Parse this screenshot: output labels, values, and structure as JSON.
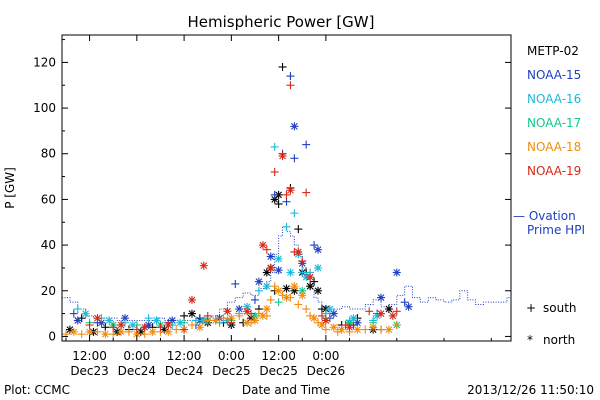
{
  "chart_data": {
    "type": "scatter",
    "title": "Hemispheric Power [GW]",
    "ylabel": "P [GW]",
    "xlabel": "Date and Time",
    "footer_left": "Plot: CCMC",
    "footer_right": "2013/12/26 11:50:10",
    "x_unit": "hours since 2013-12-23 00:00",
    "xlim": [
      5,
      119
    ],
    "ylim": [
      -2,
      132
    ],
    "y_ticks": [
      0,
      20,
      40,
      60,
      80,
      100,
      120
    ],
    "x_ticks": [
      {
        "x": 12,
        "time": "12:00",
        "date": "Dec23"
      },
      {
        "x": 24,
        "time": "0:00",
        "date": "Dec24"
      },
      {
        "x": 36,
        "time": "12:00",
        "date": "Dec24"
      },
      {
        "x": 48,
        "time": "0:00",
        "date": "Dec25"
      },
      {
        "x": 60,
        "time": "12:00",
        "date": "Dec25"
      },
      {
        "x": 72,
        "time": "0:00",
        "date": "Dec26"
      }
    ],
    "legend": {
      "satellites": [
        {
          "name": "METP-02",
          "color": "#000000"
        },
        {
          "name": "NOAA-15",
          "color": "#1f3fbf"
        },
        {
          "name": "NOAA-16",
          "color": "#20b8d8"
        },
        {
          "name": "NOAA-17",
          "color": "#10c890"
        },
        {
          "name": "NOAA-18",
          "color": "#f08c10"
        },
        {
          "name": "NOAA-19",
          "color": "#d82818"
        }
      ],
      "ovation_label_1": "— Ovation",
      "ovation_label_2": "Prime HPI",
      "ovation_color": "#1f3fbf",
      "south_symbol": "+",
      "south_label": "south",
      "north_symbol": "*",
      "north_label": "north"
    },
    "ovation_hpi": {
      "x": [
        5,
        7,
        9,
        11,
        13,
        15,
        17,
        19,
        21,
        23,
        25,
        27,
        29,
        31,
        33,
        35,
        37,
        39,
        41,
        43,
        45,
        47,
        49,
        51,
        53,
        55,
        57,
        58,
        59,
        60,
        61,
        62,
        63,
        64,
        65,
        66,
        67,
        68,
        69,
        70,
        71,
        72,
        74,
        76,
        78,
        80,
        82,
        84,
        86,
        88,
        90,
        92,
        94,
        96,
        98,
        100,
        102,
        104,
        106,
        108,
        110,
        112,
        114,
        116,
        118
      ],
      "y": [
        17,
        15,
        12,
        9,
        8,
        8,
        8,
        7,
        7,
        7,
        7,
        7,
        8,
        7,
        7,
        7,
        7,
        8,
        8,
        9,
        12,
        15,
        17,
        19,
        18,
        21,
        24,
        28,
        36,
        44,
        48,
        46,
        44,
        40,
        36,
        30,
        25,
        21,
        17,
        15,
        13,
        12,
        12,
        13,
        12,
        12,
        14,
        16,
        13,
        14,
        18,
        22,
        17,
        15,
        17,
        16,
        15,
        16,
        20,
        16,
        14,
        15,
        15,
        15,
        17
      ]
    },
    "series": [
      {
        "name": "METP-02",
        "color": "#000000",
        "hemisphere": "south",
        "points": [
          [
            10,
            8
          ],
          [
            16,
            4
          ],
          [
            22,
            3
          ],
          [
            28,
            4
          ],
          [
            36,
            9
          ],
          [
            40,
            8
          ],
          [
            46,
            6
          ],
          [
            51,
            6
          ],
          [
            55,
            12
          ],
          [
            59,
            20
          ],
          [
            60,
            58
          ],
          [
            61,
            118
          ],
          [
            63,
            65
          ],
          [
            65,
            47
          ],
          [
            67,
            28
          ],
          [
            69,
            24
          ],
          [
            71,
            12
          ],
          [
            76,
            5
          ],
          [
            80,
            8
          ],
          [
            86,
            3
          ]
        ]
      },
      {
        "name": "METP-02",
        "color": "#000000",
        "hemisphere": "north",
        "points": [
          [
            7,
            3
          ],
          [
            13,
            2
          ],
          [
            19,
            2
          ],
          [
            25,
            2
          ],
          [
            31,
            3
          ],
          [
            38,
            10
          ],
          [
            42,
            6
          ],
          [
            48,
            5
          ],
          [
            53,
            8
          ],
          [
            57,
            28
          ],
          [
            58,
            30
          ],
          [
            59,
            60
          ],
          [
            60,
            62
          ],
          [
            62,
            21
          ],
          [
            64,
            20
          ],
          [
            66,
            28
          ],
          [
            68,
            22
          ],
          [
            70,
            20
          ],
          [
            72,
            12
          ],
          [
            78,
            6
          ],
          [
            84,
            3
          ],
          [
            88,
            12
          ]
        ]
      },
      {
        "name": "NOAA-15",
        "color": "#1f3fbf",
        "hemisphere": "south",
        "points": [
          [
            8,
            10
          ],
          [
            14,
            6
          ],
          [
            20,
            5
          ],
          [
            26,
            4
          ],
          [
            32,
            6
          ],
          [
            39,
            5
          ],
          [
            44,
            7
          ],
          [
            49,
            23
          ],
          [
            54,
            16
          ],
          [
            59,
            62
          ],
          [
            61,
            80
          ],
          [
            62,
            59
          ],
          [
            63,
            114
          ],
          [
            64,
            78
          ],
          [
            67,
            84
          ],
          [
            69,
            40
          ],
          [
            73,
            8
          ],
          [
            79,
            5
          ],
          [
            85,
            10
          ],
          [
            92,
            15
          ]
        ]
      },
      {
        "name": "NOAA-15",
        "color": "#1f3fbf",
        "hemisphere": "north",
        "points": [
          [
            9,
            7
          ],
          [
            15,
            6
          ],
          [
            21,
            8
          ],
          [
            27,
            5
          ],
          [
            33,
            7
          ],
          [
            40,
            7
          ],
          [
            45,
            8
          ],
          [
            50,
            12
          ],
          [
            55,
            24
          ],
          [
            58,
            35
          ],
          [
            60,
            29
          ],
          [
            64,
            92
          ],
          [
            66,
            32
          ],
          [
            70,
            38
          ],
          [
            74,
            10
          ],
          [
            80,
            6
          ],
          [
            86,
            17
          ],
          [
            90,
            28
          ],
          [
            93,
            13
          ]
        ]
      },
      {
        "name": "NOAA-16",
        "color": "#20b8d8",
        "hemisphere": "south",
        "points": [
          [
            9,
            12
          ],
          [
            15,
            8
          ],
          [
            21,
            6
          ],
          [
            27,
            8
          ],
          [
            33,
            5
          ],
          [
            39,
            7
          ],
          [
            45,
            6
          ],
          [
            50,
            10
          ],
          [
            55,
            20
          ],
          [
            59,
            83
          ],
          [
            62,
            48
          ],
          [
            64,
            54
          ],
          [
            66,
            28
          ],
          [
            68,
            28
          ],
          [
            72,
            10
          ],
          [
            78,
            7
          ],
          [
            84,
            7
          ],
          [
            90,
            5
          ]
        ]
      },
      {
        "name": "NOAA-16",
        "color": "#20b8d8",
        "hemisphere": "north",
        "points": [
          [
            11,
            10
          ],
          [
            17,
            7
          ],
          [
            23,
            5
          ],
          [
            29,
            7
          ],
          [
            35,
            6
          ],
          [
            41,
            7
          ],
          [
            47,
            7
          ],
          [
            52,
            13
          ],
          [
            57,
            22
          ],
          [
            60,
            34
          ],
          [
            63,
            28
          ],
          [
            65,
            36
          ],
          [
            67,
            26
          ],
          [
            70,
            30
          ],
          [
            73,
            12
          ],
          [
            79,
            8
          ],
          [
            85,
            9
          ]
        ]
      },
      {
        "name": "NOAA-17",
        "color": "#10c890",
        "hemisphere": "south",
        "points": [
          [
            12,
            6
          ],
          [
            24,
            5
          ],
          [
            36,
            6
          ],
          [
            48,
            7
          ],
          [
            60,
            15
          ],
          [
            72,
            8
          ],
          [
            84,
            6
          ]
        ]
      },
      {
        "name": "NOAA-17",
        "color": "#10c890",
        "hemisphere": "north",
        "points": [
          [
            18,
            5
          ],
          [
            30,
            5
          ],
          [
            42,
            7
          ],
          [
            54,
            9
          ],
          [
            66,
            20
          ],
          [
            78,
            6
          ],
          [
            90,
            5
          ]
        ]
      },
      {
        "name": "NOAA-18",
        "color": "#f08c10",
        "hemisphere": "south",
        "points": [
          [
            6,
            1
          ],
          [
            10,
            1
          ],
          [
            14,
            2
          ],
          [
            18,
            1
          ],
          [
            22,
            2
          ],
          [
            26,
            1
          ],
          [
            30,
            2
          ],
          [
            34,
            3
          ],
          [
            38,
            5
          ],
          [
            42,
            7
          ],
          [
            46,
            8
          ],
          [
            50,
            9
          ],
          [
            53,
            6
          ],
          [
            55,
            10
          ],
          [
            57,
            9
          ],
          [
            58,
            16
          ],
          [
            59,
            22
          ],
          [
            61,
            18
          ],
          [
            63,
            17
          ],
          [
            65,
            14
          ],
          [
            67,
            12
          ],
          [
            68,
            9
          ],
          [
            70,
            6
          ],
          [
            72,
            3
          ],
          [
            75,
            2
          ],
          [
            78,
            2
          ],
          [
            82,
            3
          ],
          [
            86,
            3
          ],
          [
            90,
            5
          ]
        ]
      },
      {
        "name": "NOAA-18",
        "color": "#f08c10",
        "hemisphere": "north",
        "points": [
          [
            8,
            2
          ],
          [
            12,
            2
          ],
          [
            16,
            1
          ],
          [
            20,
            2
          ],
          [
            24,
            1
          ],
          [
            28,
            2
          ],
          [
            32,
            2
          ],
          [
            36,
            3
          ],
          [
            40,
            4
          ],
          [
            44,
            7
          ],
          [
            48,
            8
          ],
          [
            52,
            6
          ],
          [
            54,
            7
          ],
          [
            56,
            9
          ],
          [
            57,
            12
          ],
          [
            60,
            20
          ],
          [
            62,
            17
          ],
          [
            64,
            22
          ],
          [
            66,
            18
          ],
          [
            69,
            8
          ],
          [
            71,
            5
          ],
          [
            74,
            4
          ],
          [
            76,
            3
          ],
          [
            80,
            3
          ],
          [
            84,
            4
          ],
          [
            88,
            3
          ]
        ]
      },
      {
        "name": "NOAA-19",
        "color": "#d82818",
        "hemisphere": "south",
        "points": [
          [
            12,
            5
          ],
          [
            18,
            4
          ],
          [
            24,
            3
          ],
          [
            30,
            4
          ],
          [
            36,
            3
          ],
          [
            42,
            9
          ],
          [
            48,
            6
          ],
          [
            53,
            10
          ],
          [
            57,
            38
          ],
          [
            59,
            72
          ],
          [
            62,
            62
          ],
          [
            63,
            110
          ],
          [
            64,
            37
          ],
          [
            66,
            33
          ],
          [
            67,
            63
          ],
          [
            71,
            9
          ],
          [
            77,
            5
          ],
          [
            83,
            11
          ],
          [
            90,
            11
          ]
        ]
      },
      {
        "name": "NOAA-19",
        "color": "#d82818",
        "hemisphere": "north",
        "points": [
          [
            14,
            8
          ],
          [
            20,
            5
          ],
          [
            26,
            4
          ],
          [
            32,
            5
          ],
          [
            38,
            16
          ],
          [
            41,
            31
          ],
          [
            47,
            11
          ],
          [
            52,
            11
          ],
          [
            56,
            40
          ],
          [
            58,
            30
          ],
          [
            61,
            79
          ],
          [
            63,
            64
          ],
          [
            65,
            37
          ],
          [
            68,
            26
          ],
          [
            72,
            7
          ],
          [
            78,
            4
          ],
          [
            86,
            10
          ],
          [
            89,
            9
          ]
        ]
      }
    ]
  }
}
